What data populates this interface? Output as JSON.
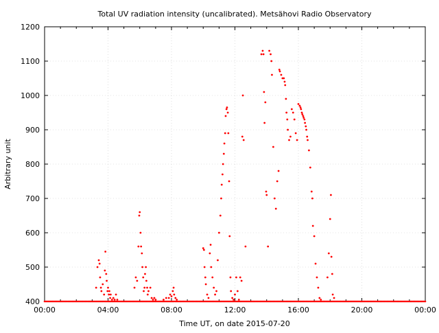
{
  "chart_data": {
    "type": "scatter",
    "title": "Total UV radiation intensity (uncalibrated). Metsähovi Radio Observatory",
    "xlabel": "Time UT, on date 2015-07-20",
    "ylabel": "Arbitrary unit",
    "xlim": [
      "00:00",
      "24:00"
    ],
    "ylim": [
      400,
      1200
    ],
    "x_ticks": [
      "00:00",
      "04:00",
      "08:00",
      "12:00",
      "16:00",
      "20:00",
      "00:00"
    ],
    "y_ticks": [
      400,
      500,
      600,
      700,
      800,
      900,
      1000,
      1100,
      1200
    ],
    "grid": true,
    "legend": "none",
    "marker_color": "#ff0000",
    "baseline_value": 400,
    "series": [
      {
        "points": [
          [
            "03:15",
            440
          ],
          [
            "03:20",
            500
          ],
          [
            "03:25",
            520
          ],
          [
            "03:28",
            510
          ],
          [
            "03:30",
            470
          ],
          [
            "03:33",
            440
          ],
          [
            "03:35",
            430
          ],
          [
            "03:40",
            450
          ],
          [
            "03:45",
            420
          ],
          [
            "03:48",
            490
          ],
          [
            "03:50",
            545
          ],
          [
            "03:53",
            480
          ],
          [
            "03:55",
            460
          ],
          [
            "03:58",
            430
          ],
          [
            "04:00",
            440
          ],
          [
            "04:03",
            420
          ],
          [
            "04:05",
            430
          ],
          [
            "04:08",
            410
          ],
          [
            "04:10",
            420
          ],
          [
            "04:15",
            405
          ],
          [
            "04:20",
            410
          ],
          [
            "04:25",
            405
          ],
          [
            "04:30",
            420
          ],
          [
            "04:35",
            405
          ],
          [
            "05:40",
            440
          ],
          [
            "05:45",
            470
          ],
          [
            "05:50",
            460
          ],
          [
            "05:55",
            560
          ],
          [
            "05:58",
            650
          ],
          [
            "06:00",
            660
          ],
          [
            "06:03",
            600
          ],
          [
            "06:05",
            560
          ],
          [
            "06:08",
            540
          ],
          [
            "06:10",
            500
          ],
          [
            "06:13",
            470
          ],
          [
            "06:15",
            430
          ],
          [
            "06:18",
            440
          ],
          [
            "06:20",
            480
          ],
          [
            "06:23",
            500
          ],
          [
            "06:25",
            460
          ],
          [
            "06:28",
            440
          ],
          [
            "06:30",
            420
          ],
          [
            "06:33",
            430
          ],
          [
            "06:40",
            440
          ],
          [
            "06:45",
            410
          ],
          [
            "06:50",
            405
          ],
          [
            "06:55",
            410
          ],
          [
            "07:00",
            405
          ],
          [
            "07:30",
            405
          ],
          [
            "07:40",
            410
          ],
          [
            "07:50",
            410
          ],
          [
            "07:55",
            420
          ],
          [
            "08:00",
            415
          ],
          [
            "08:05",
            430
          ],
          [
            "08:08",
            440
          ],
          [
            "08:10",
            420
          ],
          [
            "08:15",
            410
          ],
          [
            "08:20",
            405
          ],
          [
            "10:00",
            555
          ],
          [
            "10:03",
            550
          ],
          [
            "10:05",
            500
          ],
          [
            "10:08",
            470
          ],
          [
            "10:10",
            450
          ],
          [
            "10:15",
            420
          ],
          [
            "10:20",
            410
          ],
          [
            "10:25",
            540
          ],
          [
            "10:28",
            565
          ],
          [
            "10:30",
            500
          ],
          [
            "10:35",
            470
          ],
          [
            "10:40",
            440
          ],
          [
            "10:45",
            420
          ],
          [
            "10:50",
            430
          ],
          [
            "10:55",
            520
          ],
          [
            "11:00",
            600
          ],
          [
            "11:05",
            650
          ],
          [
            "11:08",
            700
          ],
          [
            "11:10",
            740
          ],
          [
            "11:13",
            770
          ],
          [
            "11:15",
            800
          ],
          [
            "11:18",
            830
          ],
          [
            "11:20",
            860
          ],
          [
            "11:23",
            890
          ],
          [
            "11:25",
            940
          ],
          [
            "11:28",
            960
          ],
          [
            "11:30",
            965
          ],
          [
            "11:33",
            950
          ],
          [
            "11:35",
            890
          ],
          [
            "11:38",
            750
          ],
          [
            "11:40",
            590
          ],
          [
            "11:43",
            470
          ],
          [
            "11:45",
            430
          ],
          [
            "11:50",
            410
          ],
          [
            "11:55",
            405
          ],
          [
            "12:00",
            420
          ],
          [
            "12:05",
            470
          ],
          [
            "12:10",
            430
          ],
          [
            "12:15",
            405
          ],
          [
            "12:20",
            470
          ],
          [
            "12:25",
            460
          ],
          [
            "12:28",
            880
          ],
          [
            "12:30",
            1000
          ],
          [
            "12:33",
            870
          ],
          [
            "12:40",
            560
          ],
          [
            "13:40",
            1120
          ],
          [
            "13:45",
            1130
          ],
          [
            "13:48",
            1120
          ],
          [
            "13:50",
            1010
          ],
          [
            "13:52",
            920
          ],
          [
            "13:55",
            980
          ],
          [
            "13:58",
            720
          ],
          [
            "14:00",
            710
          ],
          [
            "14:05",
            560
          ],
          [
            "14:10",
            1130
          ],
          [
            "14:15",
            1120
          ],
          [
            "14:18",
            1100
          ],
          [
            "14:20",
            1060
          ],
          [
            "14:25",
            850
          ],
          [
            "14:30",
            700
          ],
          [
            "14:35",
            670
          ],
          [
            "14:40",
            750
          ],
          [
            "14:45",
            780
          ],
          [
            "14:48",
            1075
          ],
          [
            "14:50",
            1070
          ],
          [
            "14:55",
            1060
          ],
          [
            "15:00",
            1050
          ],
          [
            "15:05",
            1050
          ],
          [
            "15:08",
            1040
          ],
          [
            "15:10",
            1030
          ],
          [
            "15:13",
            990
          ],
          [
            "15:15",
            950
          ],
          [
            "15:18",
            930
          ],
          [
            "15:20",
            900
          ],
          [
            "15:25",
            870
          ],
          [
            "15:30",
            880
          ],
          [
            "15:35",
            960
          ],
          [
            "15:40",
            950
          ],
          [
            "15:45",
            930
          ],
          [
            "15:50",
            890
          ],
          [
            "15:55",
            870
          ],
          [
            "16:00",
            975
          ],
          [
            "16:05",
            970
          ],
          [
            "16:08",
            965
          ],
          [
            "16:10",
            960
          ],
          [
            "16:13",
            950
          ],
          [
            "16:15",
            945
          ],
          [
            "16:18",
            940
          ],
          [
            "16:20",
            935
          ],
          [
            "16:23",
            930
          ],
          [
            "16:25",
            920
          ],
          [
            "16:28",
            910
          ],
          [
            "16:30",
            900
          ],
          [
            "16:33",
            880
          ],
          [
            "16:35",
            870
          ],
          [
            "16:40",
            840
          ],
          [
            "16:45",
            790
          ],
          [
            "16:50",
            720
          ],
          [
            "16:53",
            700
          ],
          [
            "16:55",
            620
          ],
          [
            "17:00",
            590
          ],
          [
            "17:05",
            510
          ],
          [
            "17:10",
            470
          ],
          [
            "17:15",
            440
          ],
          [
            "17:20",
            410
          ],
          [
            "17:25",
            405
          ],
          [
            "17:50",
            470
          ],
          [
            "17:55",
            540
          ],
          [
            "18:00",
            640
          ],
          [
            "18:03",
            710
          ],
          [
            "18:05",
            530
          ],
          [
            "18:08",
            480
          ],
          [
            "18:10",
            420
          ],
          [
            "18:15",
            410
          ]
        ]
      }
    ]
  }
}
